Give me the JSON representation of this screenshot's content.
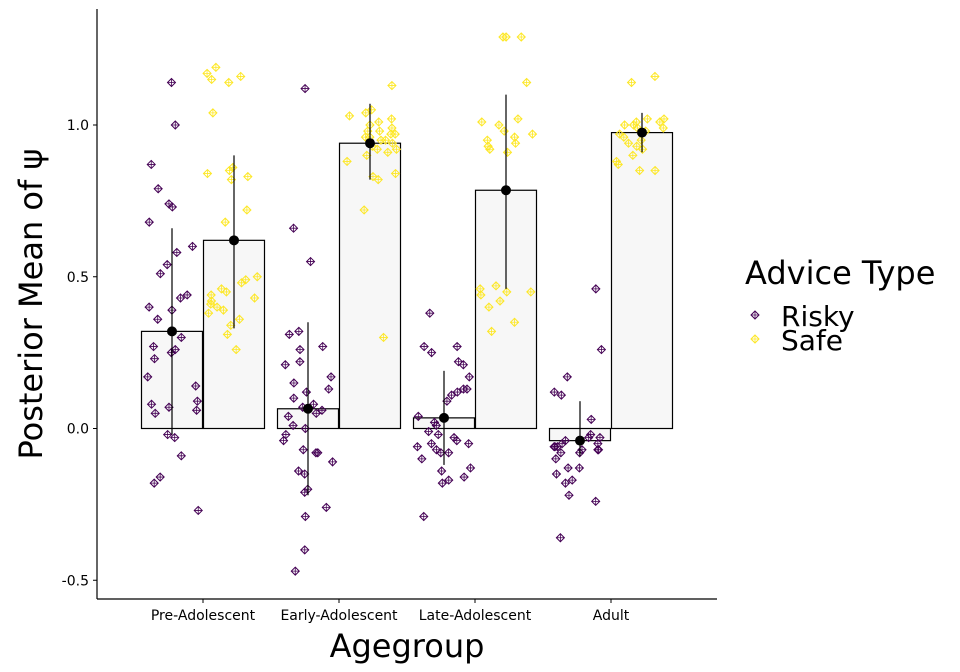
{
  "chart_data": {
    "type": "bar",
    "title": "",
    "xlabel": "Agegroup",
    "ylabel": "Posterior Mean of ψ",
    "ylim": [
      -0.55,
      1.38
    ],
    "yticks": [
      -0.5,
      0.0,
      0.5,
      1.0
    ],
    "ytick_labels": [
      "-0.5",
      "0.0",
      "0.5",
      "1.0"
    ],
    "categories": [
      "Pre-Adolescent",
      "Early-Adolescent",
      "Late-Adolescent",
      "Adult"
    ],
    "grid": false,
    "legend": {
      "title": "Advice Type",
      "placement": "right"
    },
    "series": [
      {
        "name": "Risky",
        "color": "#440154",
        "means": [
          0.32,
          0.065,
          0.035,
          -0.04
        ],
        "error_low": [
          -0.02,
          -0.22,
          -0.12,
          -0.09
        ],
        "error_high": [
          0.66,
          0.35,
          0.19,
          0.09
        ],
        "points": [
          [
            1.14,
            1.0,
            0.87,
            0.79,
            0.74,
            0.73,
            0.68,
            0.6,
            0.58,
            0.54,
            0.51,
            0.44,
            0.43,
            0.4,
            0.39,
            0.36,
            0.3,
            0.27,
            0.26,
            0.25,
            0.23,
            0.17,
            0.14,
            0.09,
            0.08,
            0.07,
            0.06,
            0.05,
            -0.02,
            -0.03,
            -0.09,
            -0.16,
            -0.18,
            -0.27
          ],
          [
            1.12,
            0.66,
            0.55,
            0.32,
            0.31,
            0.27,
            0.26,
            0.22,
            0.21,
            0.17,
            0.15,
            0.13,
            0.12,
            0.1,
            0.08,
            0.07,
            0.06,
            0.05,
            0.04,
            0.01,
            0.0,
            -0.02,
            -0.04,
            -0.07,
            -0.08,
            -0.08,
            -0.11,
            -0.14,
            -0.15,
            -0.2,
            -0.21,
            -0.26,
            -0.29,
            -0.4,
            -0.47
          ],
          [
            0.38,
            0.27,
            0.27,
            0.25,
            0.22,
            0.21,
            0.17,
            0.13,
            0.13,
            0.12,
            0.11,
            0.09,
            0.04,
            0.02,
            0.01,
            -0.01,
            -0.02,
            -0.03,
            -0.04,
            -0.05,
            -0.05,
            -0.06,
            -0.07,
            -0.08,
            -0.08,
            -0.1,
            -0.13,
            -0.14,
            -0.16,
            -0.17,
            -0.18,
            -0.29
          ],
          [
            0.46,
            0.26,
            0.17,
            0.12,
            0.11,
            0.03,
            -0.02,
            -0.03,
            -0.03,
            -0.04,
            -0.05,
            -0.05,
            -0.06,
            -0.06,
            -0.06,
            -0.07,
            -0.07,
            -0.07,
            -0.08,
            -0.08,
            -0.1,
            -0.13,
            -0.13,
            -0.15,
            -0.17,
            -0.18,
            -0.22,
            -0.24,
            -0.36
          ]
        ]
      },
      {
        "name": "Safe",
        "color": "#fde725",
        "means": [
          0.62,
          0.94,
          0.785,
          0.975
        ],
        "error_low": [
          0.33,
          0.82,
          0.46,
          0.91
        ],
        "error_high": [
          0.9,
          1.07,
          1.1,
          1.04
        ],
        "points": [
          [
            1.19,
            1.17,
            1.16,
            1.15,
            1.14,
            1.04,
            0.86,
            0.85,
            0.84,
            0.83,
            0.82,
            0.72,
            0.68,
            0.5,
            0.49,
            0.48,
            0.46,
            0.45,
            0.44,
            0.43,
            0.42,
            0.41,
            0.4,
            0.39,
            0.38,
            0.36,
            0.34,
            0.31,
            0.26
          ],
          [
            1.13,
            1.05,
            1.04,
            1.03,
            1.02,
            1.01,
            1.0,
            0.99,
            0.98,
            0.98,
            0.97,
            0.97,
            0.96,
            0.96,
            0.95,
            0.95,
            0.94,
            0.93,
            0.92,
            0.92,
            0.91,
            0.9,
            0.88,
            0.84,
            0.83,
            0.82,
            0.72,
            0.3
          ],
          [
            1.29,
            1.29,
            1.29,
            1.14,
            1.02,
            1.01,
            1.0,
            0.98,
            0.97,
            0.96,
            0.95,
            0.94,
            0.93,
            0.92,
            0.91,
            0.47,
            0.46,
            0.45,
            0.45,
            0.44,
            0.42,
            0.4,
            0.35,
            0.32
          ],
          [
            1.16,
            1.14,
            1.02,
            1.02,
            1.01,
            1.01,
            1.0,
            1.0,
            0.99,
            0.99,
            0.98,
            0.97,
            0.96,
            0.95,
            0.94,
            0.93,
            0.92,
            0.9,
            0.88,
            0.87,
            0.85,
            0.85
          ]
        ]
      }
    ]
  }
}
